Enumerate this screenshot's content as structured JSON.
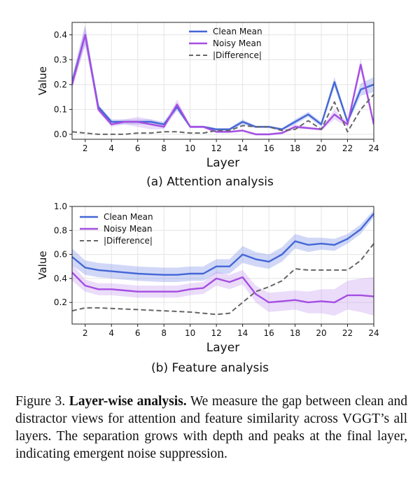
{
  "chart_data": [
    {
      "id": "attention",
      "type": "line",
      "subtitle": "(a) Attention analysis",
      "xlabel": "Layer",
      "ylabel": "Value",
      "xlim": [
        1,
        24
      ],
      "ylim": [
        -0.02,
        0.45
      ],
      "xticks": [
        "2",
        "4",
        "6",
        "8",
        "10",
        "12",
        "14",
        "16",
        "18",
        "20",
        "22",
        "24"
      ],
      "yticks": [
        "0.0",
        "0.1",
        "0.2",
        "0.3",
        "0.4"
      ],
      "grid": true,
      "legend_position": "top-right",
      "x": [
        1,
        2,
        3,
        4,
        5,
        6,
        7,
        8,
        9,
        10,
        11,
        12,
        13,
        14,
        15,
        16,
        17,
        18,
        19,
        20,
        21,
        22,
        23,
        24
      ],
      "series": [
        {
          "name": "Clean Mean",
          "style": "solid",
          "color": "#4467d6",
          "band_color": "#7b8fe8",
          "values": [
            0.21,
            0.4,
            0.11,
            0.05,
            0.05,
            0.05,
            0.05,
            0.04,
            0.11,
            0.03,
            0.03,
            0.02,
            0.02,
            0.05,
            0.03,
            0.03,
            0.02,
            0.05,
            0.08,
            0.04,
            0.21,
            0.05,
            0.18,
            0.2
          ],
          "band": [
            0.02,
            0.04,
            0.01,
            0.01,
            0.01,
            0.01,
            0.01,
            0.01,
            0.015,
            0.005,
            0.005,
            0.005,
            0.005,
            0.01,
            0.005,
            0.005,
            0.005,
            0.01,
            0.01,
            0.01,
            0.02,
            0.01,
            0.025,
            0.03
          ]
        },
        {
          "name": "Noisy Mean",
          "style": "solid",
          "color": "#a54ee2",
          "band_color": "#c79af2",
          "values": [
            0.2,
            0.4,
            0.1,
            0.04,
            0.05,
            0.05,
            0.04,
            0.03,
            0.12,
            0.03,
            0.03,
            0.01,
            0.01,
            0.015,
            0.0,
            0.0,
            0.005,
            0.03,
            0.025,
            0.02,
            0.08,
            0.04,
            0.28,
            0.04
          ],
          "band": [
            0.02,
            0.04,
            0.01,
            0.01,
            0.01,
            0.02,
            0.02,
            0.01,
            0.02,
            0.005,
            0.005,
            0.005,
            0.005,
            0.005,
            0.005,
            0.005,
            0.005,
            0.01,
            0.005,
            0.005,
            0.02,
            0.01,
            0.025,
            0.01
          ]
        },
        {
          "name": "|Difference|",
          "style": "dashed",
          "color": "#666666",
          "values": [
            0.01,
            0.005,
            0.0,
            0.0,
            0.0,
            0.005,
            0.005,
            0.01,
            0.01,
            0.005,
            0.005,
            0.015,
            0.015,
            0.035,
            0.03,
            0.03,
            0.015,
            0.02,
            0.055,
            0.02,
            0.13,
            0.01,
            0.1,
            0.16
          ]
        }
      ]
    },
    {
      "id": "feature",
      "type": "line",
      "subtitle": "(b) Feature analysis",
      "xlabel": "Layer",
      "ylabel": "Value",
      "xlim": [
        1,
        24
      ],
      "ylim": [
        0.02,
        1.0
      ],
      "xticks": [
        "2",
        "4",
        "6",
        "8",
        "10",
        "12",
        "14",
        "16",
        "18",
        "20",
        "22",
        "24"
      ],
      "yticks": [
        "0.2",
        "0.4",
        "0.6",
        "0.8",
        "1.0"
      ],
      "grid": true,
      "legend_position": "top-left",
      "x": [
        1,
        2,
        3,
        4,
        5,
        6,
        7,
        8,
        9,
        10,
        11,
        12,
        13,
        14,
        15,
        16,
        17,
        18,
        19,
        20,
        21,
        22,
        23,
        24
      ],
      "series": [
        {
          "name": "Clean Mean",
          "style": "solid",
          "color": "#4467d6",
          "band_color": "#7b8fe8",
          "values": [
            0.58,
            0.49,
            0.47,
            0.46,
            0.45,
            0.44,
            0.435,
            0.43,
            0.43,
            0.44,
            0.44,
            0.5,
            0.5,
            0.6,
            0.56,
            0.54,
            0.6,
            0.71,
            0.68,
            0.69,
            0.68,
            0.73,
            0.81,
            0.94
          ],
          "band": [
            0.07,
            0.06,
            0.06,
            0.06,
            0.06,
            0.06,
            0.06,
            0.06,
            0.06,
            0.06,
            0.06,
            0.06,
            0.06,
            0.07,
            0.06,
            0.06,
            0.06,
            0.06,
            0.06,
            0.05,
            0.05,
            0.04,
            0.04,
            0.03
          ]
        },
        {
          "name": "Noisy Mean",
          "style": "solid",
          "color": "#a54ee2",
          "band_color": "#c79af2",
          "values": [
            0.45,
            0.34,
            0.31,
            0.31,
            0.3,
            0.29,
            0.29,
            0.29,
            0.29,
            0.31,
            0.32,
            0.4,
            0.37,
            0.41,
            0.27,
            0.2,
            0.21,
            0.22,
            0.2,
            0.21,
            0.2,
            0.26,
            0.26,
            0.25
          ],
          "band": [
            0.07,
            0.05,
            0.05,
            0.05,
            0.05,
            0.05,
            0.05,
            0.05,
            0.05,
            0.05,
            0.05,
            0.06,
            0.06,
            0.06,
            0.07,
            0.08,
            0.08,
            0.08,
            0.09,
            0.1,
            0.11,
            0.12,
            0.14,
            0.16
          ]
        },
        {
          "name": "|Difference|",
          "style": "dashed",
          "color": "#666666",
          "values": [
            0.13,
            0.155,
            0.155,
            0.15,
            0.145,
            0.14,
            0.135,
            0.13,
            0.125,
            0.12,
            0.11,
            0.1,
            0.11,
            0.2,
            0.29,
            0.33,
            0.38,
            0.48,
            0.47,
            0.47,
            0.47,
            0.47,
            0.55,
            0.69
          ]
        }
      ]
    }
  ],
  "caption": {
    "figure_label": "Figure 3.",
    "bold_title": "Layer-wise analysis.",
    "text": "We measure the gap between clean and distractor views for attention and feature similarity across VGGT’s all layers.  The separation grows with depth and peaks at the final layer, indicating emergent noise suppression."
  }
}
